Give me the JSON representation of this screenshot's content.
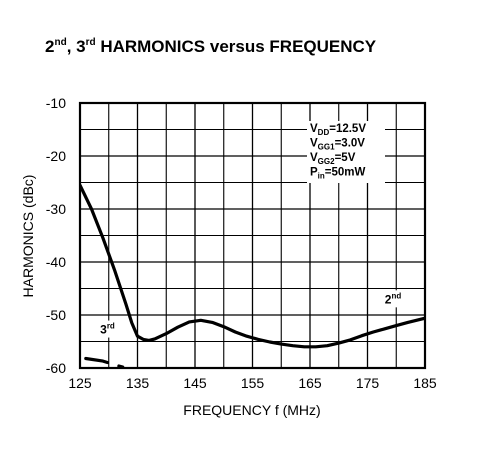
{
  "chart_data": {
    "type": "line",
    "title": {
      "parts": [
        {
          "text": "2",
          "sup": false
        },
        {
          "text": "nd",
          "sup": true
        },
        {
          "text": ", 3",
          "sup": false
        },
        {
          "text": "rd",
          "sup": true
        },
        {
          "text": " HARMONICS versus FREQUENCY",
          "sup": false
        }
      ]
    },
    "xlabel": "FREQUENCY f (MHz)",
    "ylabel": "HARMONICS (dBc)",
    "xlim": [
      125,
      185
    ],
    "ylim": [
      -60,
      -10
    ],
    "xticks": [
      125,
      135,
      145,
      155,
      165,
      175,
      185
    ],
    "xtick_labels": [
      "125",
      "135",
      "145",
      "155",
      "165",
      "175",
      "185"
    ],
    "yticks": [
      -10,
      -20,
      -30,
      -40,
      -50,
      -60
    ],
    "ytick_labels": [
      "-10",
      "-20",
      "-30",
      "-40",
      "-50",
      "-60"
    ],
    "grid": true,
    "conditions": [
      {
        "main": "V",
        "sub": "DD",
        "rest": "=12.5V"
      },
      {
        "main": "V",
        "sub": "GG1",
        "rest": "=3.0V"
      },
      {
        "main": "V",
        "sub": "GG2",
        "rest": "=5V"
      },
      {
        "main": "P",
        "sub": "in",
        "rest": "=50mW"
      }
    ],
    "series": [
      {
        "label_base": "2",
        "label_sup": "nd",
        "style": "solid",
        "x": [
          125,
          127,
          129,
          131,
          133,
          134,
          135,
          136,
          137,
          138,
          140,
          142,
          144,
          146,
          148,
          150,
          152,
          154,
          156,
          158,
          160,
          162,
          164,
          166,
          168,
          170,
          172,
          174,
          176,
          178,
          180,
          182,
          185
        ],
        "y": [
          -25.5,
          -30,
          -35.5,
          -41.5,
          -48,
          -51.5,
          -54,
          -54.6,
          -54.8,
          -54.5,
          -53.5,
          -52.3,
          -51.3,
          -51,
          -51.4,
          -52.2,
          -53.2,
          -54,
          -54.6,
          -55.1,
          -55.5,
          -55.8,
          -56,
          -56,
          -55.8,
          -55.3,
          -54.7,
          -53.9,
          -53.2,
          -52.6,
          -52,
          -51.4,
          -50.6
        ],
        "label_x": 178,
        "label_y": -47.8
      },
      {
        "label_base": "3",
        "label_sup": "rd",
        "style": "dashed",
        "x": [
          126,
          129,
          131,
          133,
          134.5,
          136,
          138,
          140,
          142,
          147,
          150,
          155,
          160,
          165,
          175,
          185
        ],
        "y": [
          -58.2,
          -58.7,
          -59.4,
          -60,
          -60.6,
          -61,
          -61.3,
          -61.2,
          -61.1,
          -61.2,
          -61.3,
          -61.2,
          -61.3,
          -61.4,
          -61.3,
          -61.2
        ],
        "label_x": 128.5,
        "label_y": -53.5
      }
    ]
  }
}
